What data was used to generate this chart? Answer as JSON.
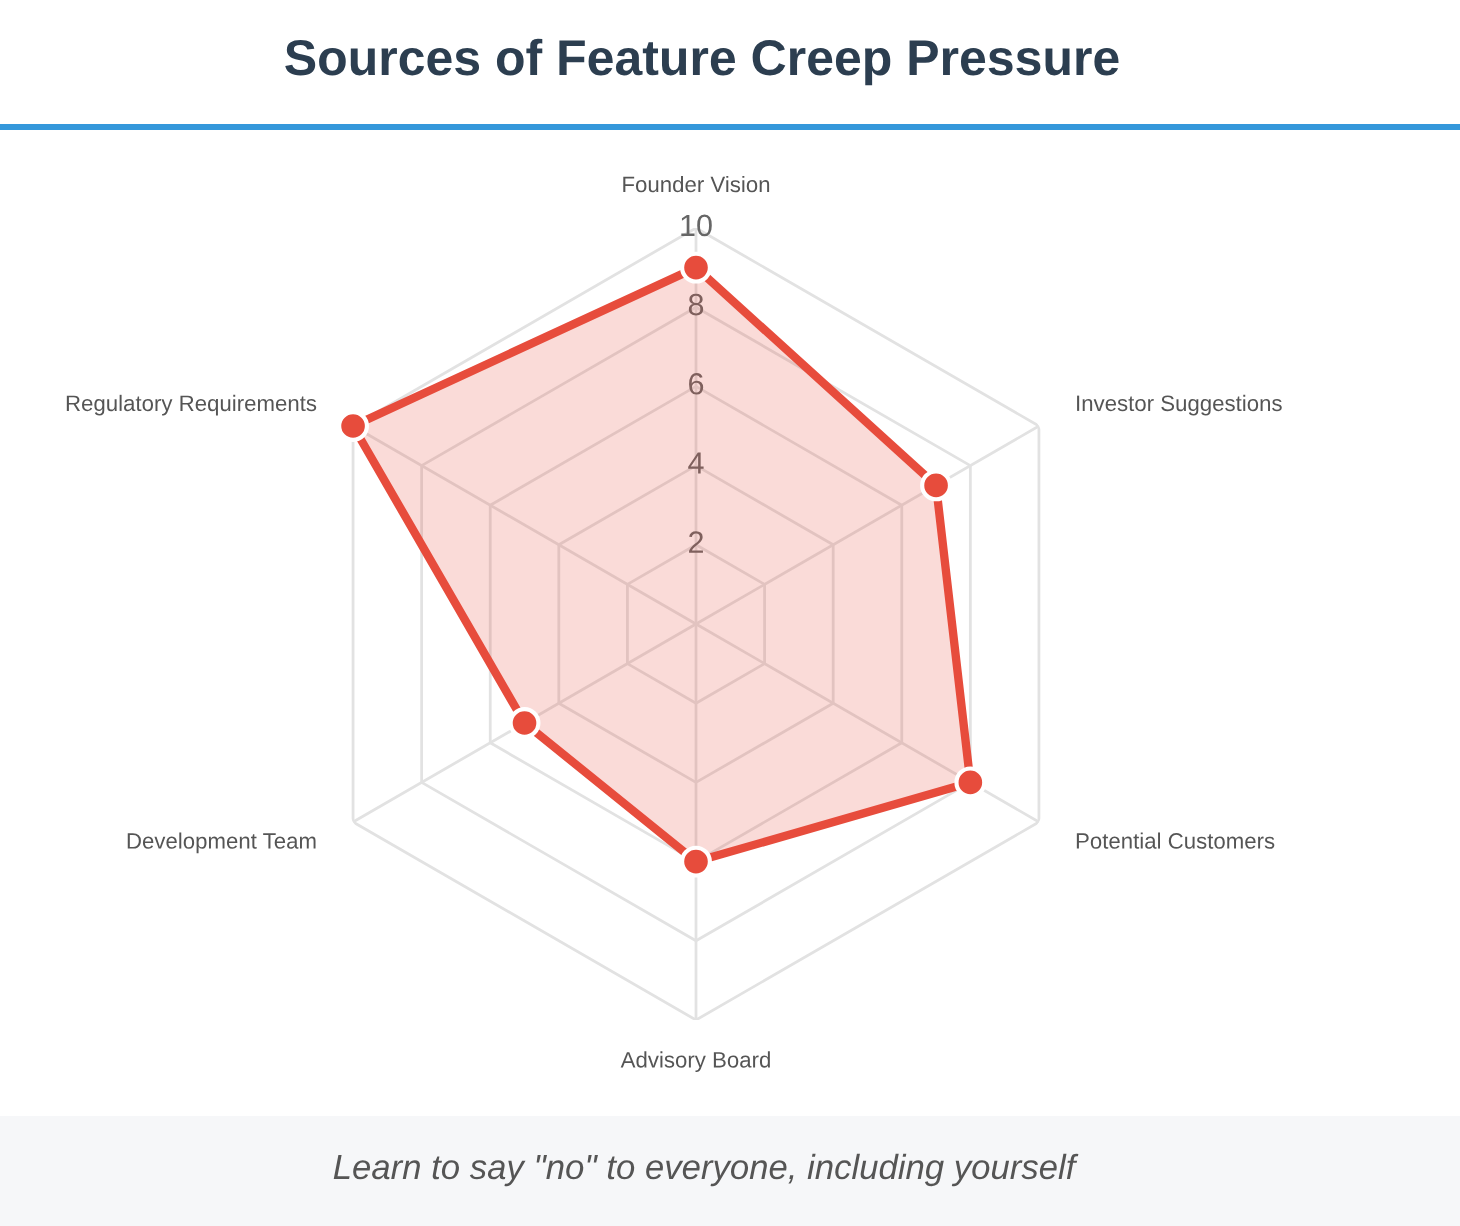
{
  "chart_data": {
    "type": "radar",
    "title": "Sources of Feature Creep Pressure",
    "categories": [
      "Founder Vision",
      "Investor Suggestions",
      "Potential Customers",
      "Advisory Board",
      "Development Team",
      "Regulatory Requirements"
    ],
    "series": [
      {
        "color": "#e74c3c",
        "values": [
          9,
          7,
          8,
          6,
          5,
          10
        ]
      }
    ],
    "ylim": [
      0,
      10
    ],
    "yticks": [
      2,
      4,
      6,
      8,
      10
    ],
    "grid": true,
    "marker": "circle",
    "line_style": "solid",
    "annotations": [
      "Learn to say \"no\" to everyone, including yourself"
    ]
  }
}
